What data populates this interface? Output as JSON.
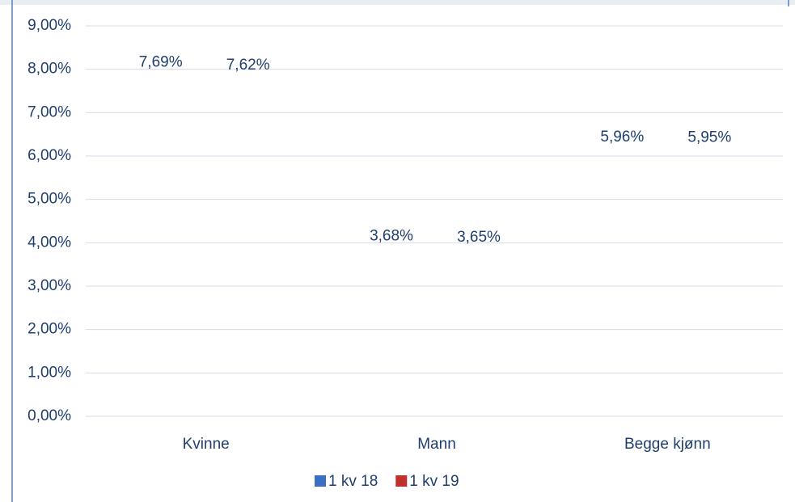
{
  "chart_data": {
    "type": "bar",
    "categories": [
      "Kvinne",
      "Mann",
      "Begge kjønn"
    ],
    "series": [
      {
        "name": "1 kv 18",
        "color": "#3a6fc4",
        "values": [
          7.69,
          3.68,
          5.96
        ],
        "value_labels": [
          "7,69%",
          "3,68%",
          "5,96%"
        ]
      },
      {
        "name": "1 kv 19",
        "color": "#c0312b",
        "values": [
          7.62,
          3.65,
          5.95
        ],
        "value_labels": [
          "7,62%",
          "3,65%",
          "5,95%"
        ]
      }
    ],
    "ylim": [
      0,
      9
    ],
    "yticks": [
      {
        "value": 0,
        "label": "0,00%"
      },
      {
        "value": 1,
        "label": "1,00%"
      },
      {
        "value": 2,
        "label": "2,00%"
      },
      {
        "value": 3,
        "label": "3,00%"
      },
      {
        "value": 4,
        "label": "4,00%"
      },
      {
        "value": 5,
        "label": "5,00%"
      },
      {
        "value": 6,
        "label": "6,00%"
      },
      {
        "value": 7,
        "label": "7,00%"
      },
      {
        "value": 8,
        "label": "8,00%"
      },
      {
        "value": 9,
        "label": "9,00%"
      }
    ],
    "grid": true,
    "legend": "bottom"
  }
}
